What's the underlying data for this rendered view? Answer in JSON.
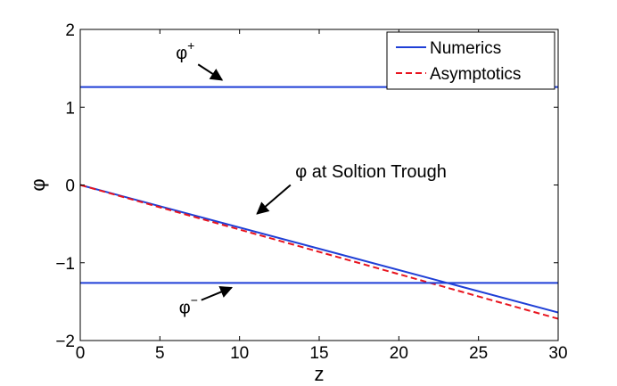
{
  "chart_data": {
    "type": "line",
    "title": "",
    "xlabel": "z",
    "ylabel": "φ",
    "xlim": [
      0,
      30
    ],
    "ylim": [
      -2,
      2
    ],
    "xticks": [
      0,
      5,
      10,
      15,
      20,
      25,
      30
    ],
    "yticks": [
      -2,
      -1,
      0,
      1,
      2
    ],
    "grid": false,
    "legend_position": "top-right",
    "series": [
      {
        "name": "Numerics",
        "color": "#1f3fd6",
        "dash": "solid",
        "x": [
          0,
          30
        ],
        "y": [
          0,
          -1.64
        ]
      },
      {
        "name": "Asymptotics",
        "color": "#e8141e",
        "dash": "dashed",
        "x": [
          0,
          30
        ],
        "y": [
          0,
          -1.72
        ]
      },
      {
        "name": "",
        "color": "#1f3fd6",
        "dash": "solid",
        "x": [
          0,
          30
        ],
        "y": [
          1.26,
          1.26
        ]
      },
      {
        "name": "",
        "color": "#1f3fd6",
        "dash": "solid",
        "x": [
          0,
          30
        ],
        "y": [
          -1.26,
          -1.26
        ]
      }
    ],
    "annotations": [
      {
        "id": "phi-plus",
        "base": "φ",
        "sup": "+",
        "text_at": [
          6.0,
          1.62
        ],
        "arrow_from": [
          7.4,
          1.55
        ],
        "arrow_to": [
          8.9,
          1.35
        ]
      },
      {
        "id": "phi-trough",
        "text": "φ  at Soltion Trough",
        "text_at": [
          13.5,
          0.1
        ],
        "arrow_from": [
          13.2,
          0.0
        ],
        "arrow_to": [
          11.1,
          -0.37
        ]
      },
      {
        "id": "phi-minus",
        "base": "φ",
        "sup": "−",
        "text_at": [
          6.2,
          -1.65
        ],
        "arrow_from": [
          7.6,
          -1.48
        ],
        "arrow_to": [
          9.5,
          -1.32
        ]
      }
    ]
  }
}
